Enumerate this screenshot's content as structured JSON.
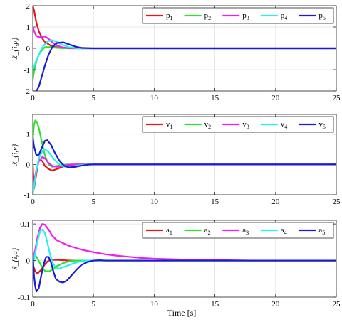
{
  "chart_data": [
    {
      "type": "line",
      "ylabel": "x̃_{i,p}",
      "xlabel": "",
      "xlim": [
        0,
        25
      ],
      "ylim": [
        -2,
        2
      ],
      "xticks": [
        0,
        5,
        10,
        15,
        20,
        25
      ],
      "yticks": [
        -2,
        -1,
        0,
        1,
        2
      ],
      "yticklabels": [
        "-2",
        "-1",
        "0",
        "1",
        "2"
      ],
      "grid": true,
      "legend": "top-right",
      "series": [
        {
          "name": "p",
          "sub": "1",
          "color": "#e8141c",
          "x": [
            0,
            0.1,
            0.3,
            0.5,
            0.8,
            1,
            1.5,
            2,
            2.5,
            3,
            3.5,
            4,
            5,
            6,
            8,
            10,
            15,
            20,
            25
          ],
          "y": [
            2,
            1.8,
            1.2,
            0.8,
            0.45,
            0.3,
            0.12,
            0.04,
            0.01,
            0,
            0,
            0,
            0,
            0,
            0,
            0,
            0,
            0,
            0
          ]
        },
        {
          "name": "p",
          "sub": "2",
          "color": "#2be32b",
          "x": [
            0,
            0.1,
            0.3,
            0.5,
            0.8,
            1,
            1.5,
            2,
            2.5,
            3,
            4,
            5,
            6,
            8,
            10,
            15,
            20,
            25
          ],
          "y": [
            -1.5,
            -1.1,
            -0.6,
            -0.3,
            -0.05,
            0.05,
            0.06,
            0.02,
            0.005,
            0,
            0,
            0,
            0,
            0,
            0,
            0,
            0,
            0
          ]
        },
        {
          "name": "p",
          "sub": "3",
          "color": "#f01ef0",
          "x": [
            0,
            0.15,
            0.3,
            0.5,
            0.8,
            1,
            1.3,
            1.6,
            2,
            2.5,
            3,
            4,
            5,
            6,
            8,
            10,
            15,
            20,
            25
          ],
          "y": [
            1,
            0.75,
            0.58,
            0.52,
            0.55,
            0.55,
            0.45,
            0.28,
            0.12,
            0.04,
            0.01,
            0,
            0,
            0,
            0,
            0,
            0,
            0,
            0
          ]
        },
        {
          "name": "p",
          "sub": "4",
          "color": "#26f0ee",
          "x": [
            0,
            0.2,
            0.5,
            0.8,
            1,
            1.3,
            1.6,
            2,
            2.5,
            3,
            3.5,
            4,
            5,
            6,
            8,
            10,
            15,
            20,
            25
          ],
          "y": [
            -1,
            -0.7,
            -0.3,
            0.05,
            0.2,
            0.35,
            0.38,
            0.3,
            0.15,
            0.05,
            0.01,
            0,
            0,
            0,
            0,
            0,
            0,
            0,
            0
          ]
        },
        {
          "name": "p",
          "sub": "5",
          "color": "#1a1ad8",
          "x": [
            0,
            0.15,
            0.3,
            0.5,
            0.7,
            1,
            1.3,
            1.6,
            2,
            2.5,
            3,
            3.5,
            4,
            5,
            6,
            8,
            10,
            15,
            20,
            25
          ],
          "y": [
            -2,
            -2.05,
            -2,
            -1.8,
            -1.4,
            -0.8,
            -0.3,
            0.05,
            0.25,
            0.28,
            0.18,
            0.08,
            0.02,
            0,
            0,
            0,
            0,
            0,
            0,
            0
          ]
        }
      ]
    },
    {
      "type": "line",
      "ylabel": "x̃_{i,v}",
      "xlabel": "",
      "xlim": [
        0,
        25
      ],
      "ylim": [
        -1,
        1.65
      ],
      "xticks": [
        0,
        5,
        10,
        15,
        20,
        25
      ],
      "yticks": [
        -1,
        0,
        1
      ],
      "yticklabels": [
        "-1",
        "0",
        "1"
      ],
      "grid": true,
      "legend": "top-right",
      "series": [
        {
          "name": "v",
          "sub": "1",
          "color": "#e8141c",
          "x": [
            0,
            0.1,
            0.3,
            0.5,
            0.8,
            1,
            1.3,
            1.6,
            2,
            2.5,
            3,
            3.5,
            4,
            5,
            6,
            8,
            10,
            15,
            20,
            25
          ],
          "y": [
            0,
            -0.8,
            -0.3,
            0.2,
            0.1,
            -0.05,
            -0.15,
            -0.2,
            -0.15,
            -0.07,
            -0.03,
            -0.01,
            0,
            0,
            0,
            0,
            0,
            0,
            0,
            0
          ]
        },
        {
          "name": "v",
          "sub": "2",
          "color": "#2be32b",
          "x": [
            0,
            0.1,
            0.2,
            0.35,
            0.5,
            0.8,
            1,
            1.3,
            1.6,
            2,
            2.5,
            3,
            3.5,
            4,
            5,
            6,
            8,
            10,
            15,
            20,
            25
          ],
          "y": [
            0.8,
            1.3,
            1.45,
            1.4,
            1.2,
            0.65,
            0.3,
            0,
            -0.08,
            -0.05,
            -0.01,
            0,
            0,
            0,
            0,
            0,
            0,
            0,
            0,
            0,
            0
          ]
        },
        {
          "name": "v",
          "sub": "3",
          "color": "#f01ef0",
          "x": [
            0,
            0.15,
            0.3,
            0.5,
            0.8,
            1,
            1.3,
            1.6,
            2,
            2.5,
            3,
            3.5,
            4,
            5,
            6,
            8,
            10,
            15,
            20,
            25
          ],
          "y": [
            -0.8,
            -0.5,
            -0.15,
            0.1,
            0.25,
            0.2,
            0.05,
            -0.05,
            -0.08,
            -0.04,
            -0.01,
            0,
            0,
            0,
            0,
            0,
            0,
            0,
            0,
            0
          ]
        },
        {
          "name": "v",
          "sub": "4",
          "color": "#26f0ee",
          "x": [
            0,
            0.15,
            0.3,
            0.5,
            0.8,
            1,
            1.3,
            1.6,
            2,
            2.5,
            3,
            3.5,
            4,
            4.5,
            5,
            6,
            8,
            10,
            15,
            20,
            25
          ],
          "y": [
            -1,
            -0.6,
            -0.2,
            0.2,
            0.45,
            0.5,
            0.42,
            0.25,
            0.06,
            -0.07,
            -0.08,
            -0.05,
            -0.02,
            0,
            0,
            0,
            0,
            0,
            0,
            0,
            0
          ]
        },
        {
          "name": "v",
          "sub": "5",
          "color": "#1a1ad8",
          "x": [
            0,
            0.1,
            0.3,
            0.5,
            0.8,
            1,
            1.2,
            1.5,
            1.8,
            2.2,
            2.6,
            3,
            3.5,
            4,
            4.5,
            5,
            6,
            8,
            10,
            15,
            20,
            25
          ],
          "y": [
            0.9,
            0.6,
            0.3,
            0.32,
            0.6,
            0.78,
            0.8,
            0.65,
            0.4,
            0.12,
            -0.05,
            -0.1,
            -0.08,
            -0.04,
            -0.01,
            0,
            0,
            0,
            0,
            0,
            0,
            0
          ]
        }
      ]
    },
    {
      "type": "line",
      "ylabel": "x̃_{i,a}",
      "xlabel": "Time [s]",
      "xlim": [
        0,
        25
      ],
      "ylim": [
        -0.1,
        0.11
      ],
      "xticks": [
        0,
        5,
        10,
        15,
        20,
        25
      ],
      "yticks": [
        -0.1,
        0,
        0.1
      ],
      "yticklabels": [
        "-0.1",
        "0",
        "0.1"
      ],
      "grid": true,
      "legend": "top-right",
      "series": [
        {
          "name": "a",
          "sub": "1",
          "color": "#e8141c",
          "x": [
            0,
            0.2,
            0.4,
            0.7,
            1,
            1.3,
            1.6,
            2,
            2.5,
            3,
            4,
            5,
            25
          ],
          "y": [
            -0.01,
            -0.03,
            -0.035,
            -0.025,
            -0.01,
            0,
            0.002,
            0.002,
            0.001,
            0,
            0,
            0,
            0
          ]
        },
        {
          "name": "a",
          "sub": "2",
          "color": "#2be32b",
          "x": [
            0,
            0.2,
            0.4,
            0.6,
            0.8,
            1,
            1.3,
            1.6,
            2,
            2.5,
            3,
            3.5,
            4,
            5,
            6,
            25
          ],
          "y": [
            0.02,
            0.015,
            0.005,
            -0.008,
            -0.02,
            -0.028,
            -0.03,
            -0.025,
            -0.015,
            -0.007,
            -0.002,
            0,
            0,
            0,
            0,
            0
          ]
        },
        {
          "name": "a",
          "sub": "3",
          "color": "#f01ef0",
          "x": [
            0,
            0.2,
            0.4,
            0.6,
            0.8,
            1,
            1.3,
            1.6,
            2,
            3,
            4,
            5,
            6,
            7,
            8,
            9,
            10,
            12,
            14,
            16,
            18,
            20,
            25
          ],
          "y": [
            0,
            0.03,
            0.065,
            0.09,
            0.1,
            0.098,
            0.085,
            0.068,
            0.055,
            0.04,
            0.03,
            0.023,
            0.017,
            0.013,
            0.01,
            0.007,
            0.005,
            0.003,
            0.002,
            0.001,
            0,
            0,
            0
          ]
        },
        {
          "name": "a",
          "sub": "4",
          "color": "#26f0ee",
          "x": [
            0,
            0.2,
            0.4,
            0.6,
            0.8,
            1,
            1.2,
            1.4,
            1.6,
            1.8,
            2,
            2.2,
            2.5,
            3,
            3.5,
            4,
            4.5,
            5,
            6,
            25
          ],
          "y": [
            -0.02,
            0.02,
            0.055,
            0.08,
            0.085,
            0.075,
            0.05,
            0.02,
            -0.003,
            -0.015,
            -0.02,
            -0.022,
            -0.018,
            -0.012,
            -0.006,
            -0.002,
            0,
            0,
            0,
            0
          ]
        },
        {
          "name": "a",
          "sub": "5",
          "color": "#1a1ad8",
          "x": [
            0,
            0.1,
            0.2,
            0.3,
            0.5,
            0.7,
            0.9,
            1.1,
            1.3,
            1.5,
            1.7,
            1.9,
            2.2,
            2.5,
            2.8,
            3.2,
            3.6,
            4,
            4.5,
            5,
            5.5,
            6,
            7,
            25
          ],
          "y": [
            0.01,
            -0.04,
            -0.07,
            -0.085,
            -0.075,
            -0.04,
            -0.01,
            0.01,
            0.01,
            -0.005,
            -0.03,
            -0.05,
            -0.058,
            -0.06,
            -0.055,
            -0.04,
            -0.025,
            -0.012,
            -0.004,
            0,
            0.001,
            0,
            0,
            0
          ]
        }
      ]
    }
  ]
}
